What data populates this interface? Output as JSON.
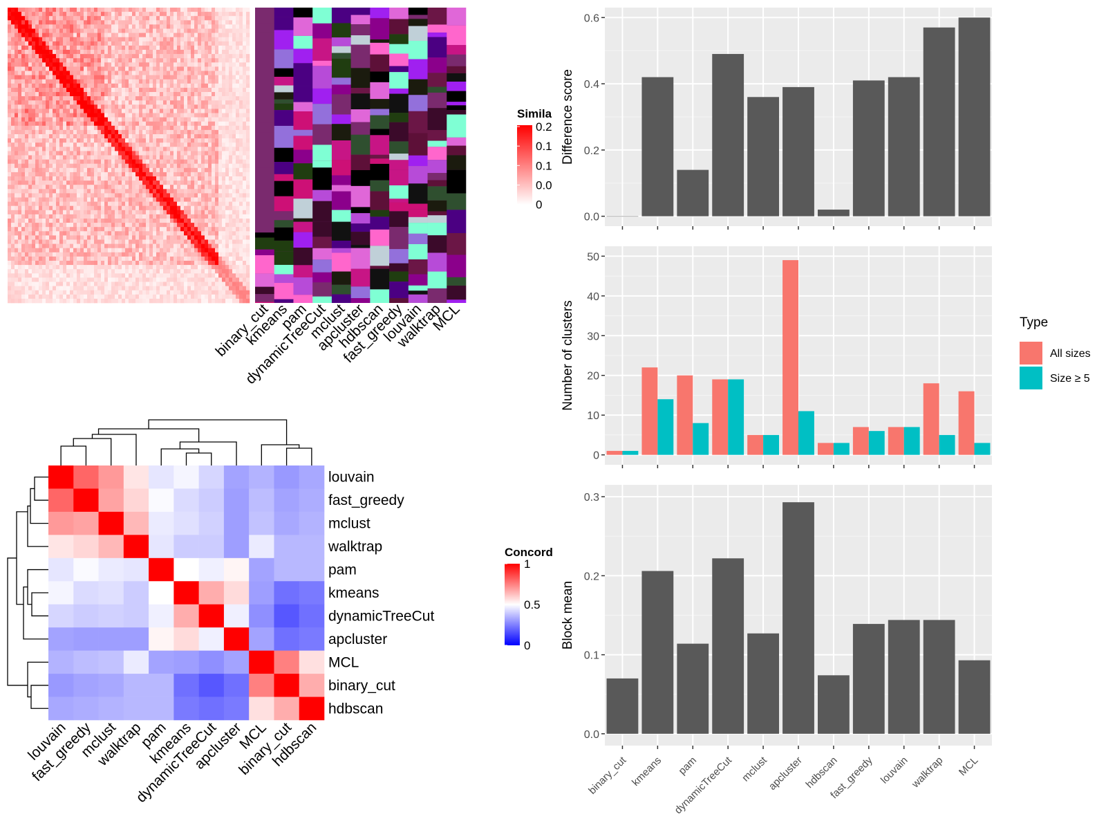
{
  "chart_data": [
    {
      "type": "heatmap",
      "legend_title": "Simila",
      "legend_ticks": [
        "0.2",
        "0.1",
        "0.1",
        "0.0",
        "0"
      ],
      "annotation_tracks": [
        "binary_cut",
        "kmeans",
        "pam",
        "dynamicTreeCut",
        "mclust",
        "apcluster",
        "hdbscan",
        "fast_greedy",
        "louvain",
        "walktrap",
        "MCL"
      ]
    },
    {
      "type": "heatmap",
      "legend_title": "Concord",
      "legend_ticks": [
        "1",
        "0.5",
        "0"
      ],
      "colors": {
        "low": "#0000ff",
        "mid": "#ffffff",
        "high": "#ff0000"
      },
      "rows": [
        "louvain",
        "fast_greedy",
        "mclust",
        "walktrap",
        "pam",
        "kmeans",
        "dynamicTreeCut",
        "apcluster",
        "MCL",
        "binary_cut",
        "hdbscan"
      ],
      "cols": [
        "louvain",
        "fast_greedy",
        "mclust",
        "walktrap",
        "pam",
        "kmeans",
        "dynamicTreeCut",
        "apcluster",
        "MCL",
        "binary_cut",
        "hdbscan"
      ],
      "values": [
        [
          1.0,
          0.8,
          0.7,
          0.55,
          0.45,
          0.48,
          0.42,
          0.32,
          0.35,
          0.3,
          0.33
        ],
        [
          0.8,
          1.0,
          0.68,
          0.58,
          0.49,
          0.43,
          0.4,
          0.31,
          0.37,
          0.32,
          0.34
        ],
        [
          0.7,
          0.68,
          1.0,
          0.64,
          0.46,
          0.44,
          0.41,
          0.31,
          0.38,
          0.33,
          0.35
        ],
        [
          0.55,
          0.58,
          0.64,
          1.0,
          0.45,
          0.4,
          0.4,
          0.31,
          0.46,
          0.36,
          0.36
        ],
        [
          0.45,
          0.49,
          0.46,
          0.45,
          1.0,
          0.5,
          0.47,
          0.52,
          0.32,
          0.36,
          0.36
        ],
        [
          0.48,
          0.43,
          0.44,
          0.4,
          0.5,
          1.0,
          0.66,
          0.57,
          0.31,
          0.22,
          0.24
        ],
        [
          0.42,
          0.4,
          0.41,
          0.4,
          0.47,
          0.66,
          1.0,
          0.47,
          0.28,
          0.17,
          0.22
        ],
        [
          0.32,
          0.31,
          0.31,
          0.31,
          0.52,
          0.57,
          0.47,
          1.0,
          0.32,
          0.22,
          0.24
        ],
        [
          0.35,
          0.37,
          0.38,
          0.46,
          0.32,
          0.31,
          0.28,
          0.32,
          1.0,
          0.75,
          0.56
        ],
        [
          0.3,
          0.32,
          0.33,
          0.36,
          0.36,
          0.22,
          0.17,
          0.22,
          0.75,
          1.0,
          0.66
        ],
        [
          0.33,
          0.34,
          0.35,
          0.36,
          0.36,
          0.24,
          0.22,
          0.24,
          0.56,
          0.66,
          1.0
        ]
      ]
    },
    {
      "type": "bar",
      "categories": [
        "binary_cut",
        "kmeans",
        "pam",
        "dynamicTreeCut",
        "mclust",
        "apcluster",
        "hdbscan",
        "fast_greedy",
        "louvain",
        "walktrap",
        "MCL"
      ],
      "values": [
        0.0,
        0.42,
        0.14,
        0.49,
        0.36,
        0.39,
        0.02,
        0.41,
        0.42,
        0.57,
        0.6
      ],
      "ylabel": "Difference score",
      "ylim": [
        0,
        0.6
      ],
      "yticks": [
        "0.0",
        "0.2",
        "0.4",
        "0.6"
      ]
    },
    {
      "type": "bar",
      "categories": [
        "binary_cut",
        "kmeans",
        "pam",
        "dynamicTreeCut",
        "mclust",
        "apcluster",
        "hdbscan",
        "fast_greedy",
        "louvain",
        "walktrap",
        "MCL"
      ],
      "series": [
        {
          "name": "All sizes",
          "color": "#f8766d",
          "values": [
            1,
            22,
            20,
            19,
            5,
            49,
            3,
            7,
            7,
            18,
            16
          ]
        },
        {
          "name": "Size ≥ 5",
          "color": "#00bfc4",
          "values": [
            1,
            14,
            8,
            19,
            5,
            11,
            3,
            6,
            7,
            5,
            3
          ]
        }
      ],
      "ylabel": "Number of clusters",
      "ylim": [
        0,
        50
      ],
      "yticks": [
        "0",
        "10",
        "20",
        "30",
        "40",
        "50"
      ],
      "legend_title": "Type",
      "legend_position": "right"
    },
    {
      "type": "bar",
      "categories": [
        "binary_cut",
        "kmeans",
        "pam",
        "dynamicTreeCut",
        "mclust",
        "apcluster",
        "hdbscan",
        "fast_greedy",
        "louvain",
        "walktrap",
        "MCL"
      ],
      "values": [
        0.07,
        0.206,
        0.114,
        0.222,
        0.127,
        0.293,
        0.074,
        0.139,
        0.144,
        0.144,
        0.093
      ],
      "ylabel": "Block mean",
      "ylim": [
        0,
        0.3
      ],
      "yticks": [
        "0.0",
        "0.1",
        "0.2",
        "0.3"
      ]
    }
  ]
}
